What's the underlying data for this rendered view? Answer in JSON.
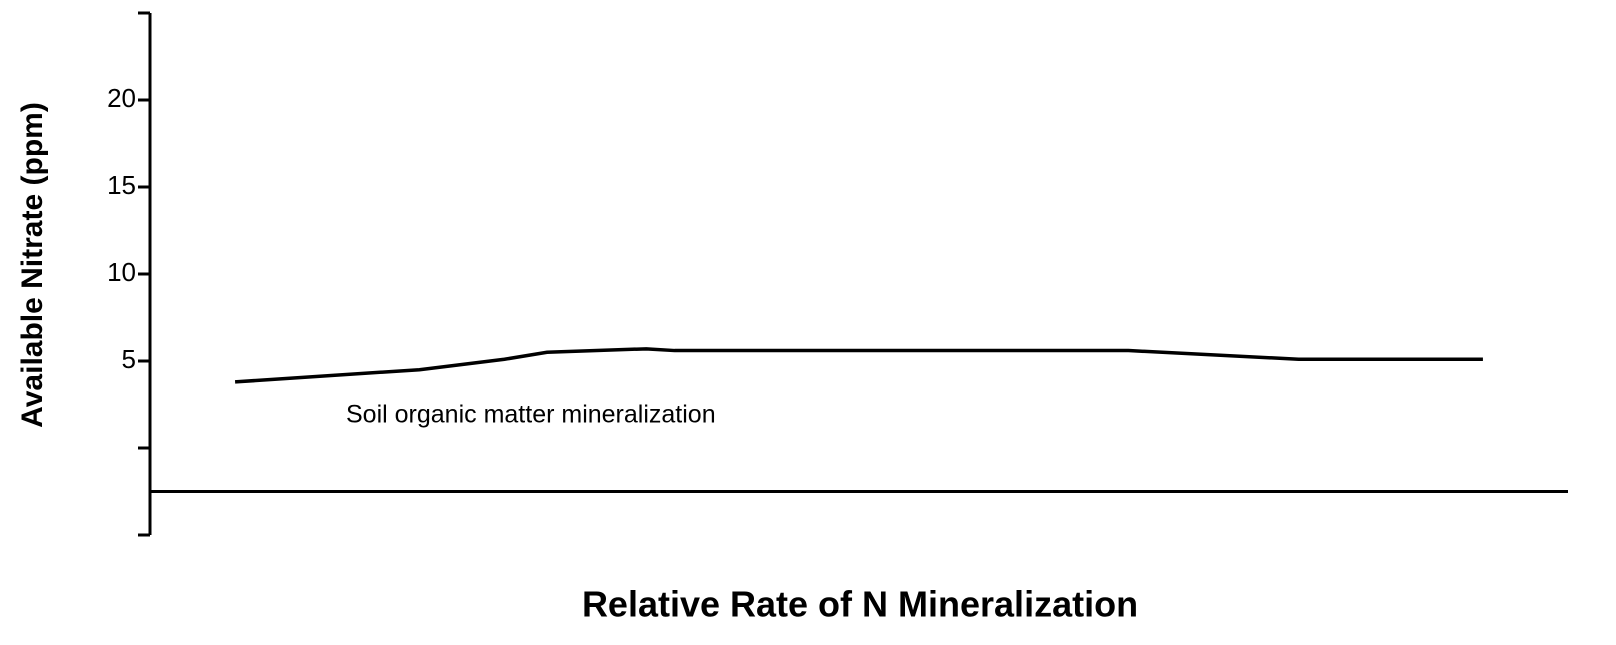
{
  "chart_data": {
    "type": "line",
    "y_label": "Available Nitrate (ppm)",
    "x_label": "Relative Rate of N Mineralization",
    "annotation": "Soil organic matter mineralization",
    "xlim": [
      0,
      100
    ],
    "ylim": [
      -5,
      25
    ],
    "yticks": [
      5,
      10,
      15,
      20
    ],
    "yticks_unlabeled": [
      -5,
      0,
      25
    ],
    "x_axis_at": -2.5,
    "series": [
      {
        "name": "Soil organic matter mineralization",
        "color": "#000000",
        "x": [
          6,
          19,
          25,
          28,
          35,
          37,
          69,
          81,
          94
        ],
        "values": [
          3.8,
          4.5,
          5.1,
          5.5,
          5.7,
          5.6,
          5.6,
          5.1,
          5.1
        ]
      }
    ]
  }
}
